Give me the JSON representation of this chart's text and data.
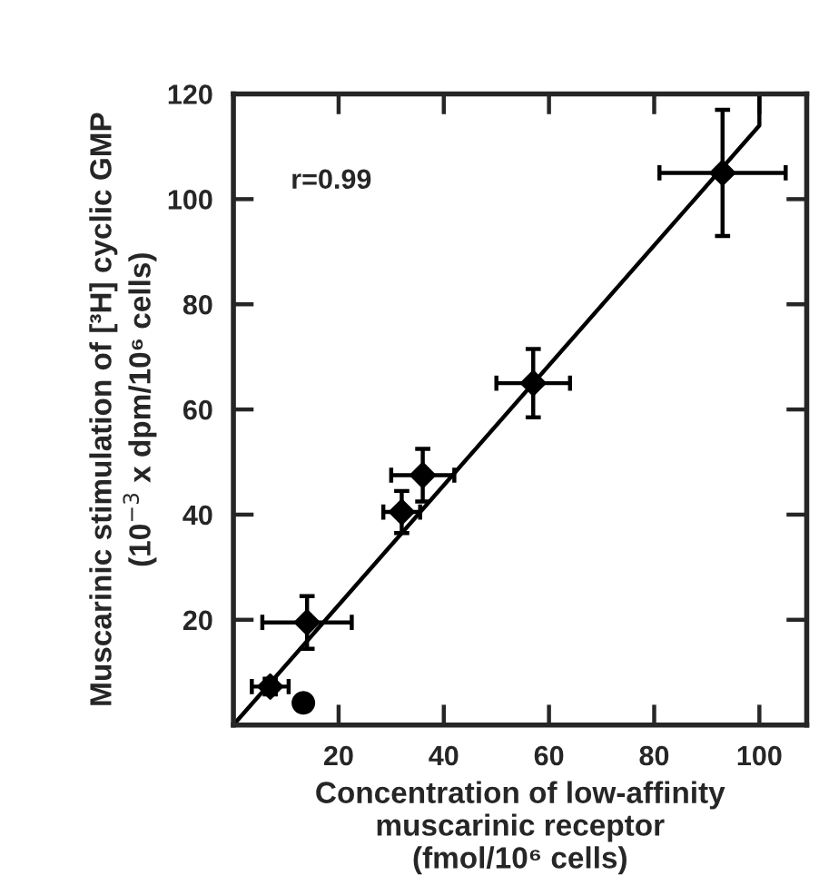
{
  "chart_data": {
    "type": "scatter",
    "xlabel": "Concentration of low-affinity\nmuscarinic receptor\n(fmol/10⁶ cells)",
    "ylabel": "Muscarinic stimulation of [³H] cyclic GMP\n(10$^{−3}$ x dpm/10⁶ cells)",
    "annotations": [
      "r=0.99"
    ],
    "xlim": [
      0,
      109
    ],
    "ylim": [
      0,
      120
    ],
    "xticks": [
      20,
      40,
      60,
      80,
      100
    ],
    "yticks": [
      20,
      40,
      60,
      80,
      100,
      120
    ],
    "grid": false,
    "legend": false,
    "series": [
      {
        "marker": "diamond",
        "color": "#000000",
        "x": [
          93,
          57,
          36,
          32,
          14,
          7
        ],
        "values": [
          105,
          65,
          47.5,
          40.5,
          19.5,
          7.3
        ],
        "errors": [
          12,
          6.5,
          5,
          4,
          5,
          1.5
        ],
        "xerrors": [
          12,
          7,
          6,
          3.5,
          8.5,
          3.5
        ]
      },
      {
        "marker": "circle",
        "color": "#000000",
        "x": [
          13.3
        ],
        "values": [
          4.2
        ]
      },
      {
        "type": "line",
        "marker": "none",
        "line_style": "solid",
        "color": "#000000",
        "x": [
          0,
          100,
          100
        ],
        "values": [
          0,
          114,
          120
        ]
      }
    ]
  }
}
